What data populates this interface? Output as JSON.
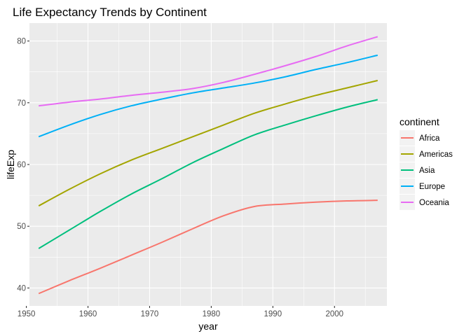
{
  "chart_data": {
    "type": "line",
    "title": "Life Expectancy Trends by Continent",
    "xlabel": "year",
    "ylabel": "lifeExp",
    "xlim": [
      1950.5,
      2008.5
    ],
    "ylim": [
      37.1,
      82.9
    ],
    "x_ticks": [
      1950,
      1960,
      1970,
      1980,
      1990,
      2000
    ],
    "y_ticks": [
      40,
      50,
      60,
      70,
      80
    ],
    "legend_title": "continent",
    "legend_position": "right",
    "grid": true,
    "background": "#ebebeb",
    "x": [
      1952,
      1957,
      1962,
      1967,
      1972,
      1977,
      1982,
      1987,
      1992,
      1997,
      2002,
      2007
    ],
    "series": [
      {
        "name": "Africa",
        "color": "#F8766D",
        "values": [
          39.1,
          41.2,
          43.2,
          45.3,
          47.4,
          49.6,
          51.7,
          53.2,
          53.6,
          53.9,
          54.1,
          54.2
        ]
      },
      {
        "name": "Americas",
        "color": "#A3A500",
        "values": [
          53.3,
          56.0,
          58.5,
          60.7,
          62.6,
          64.5,
          66.4,
          68.3,
          69.8,
          71.2,
          72.4,
          73.6
        ]
      },
      {
        "name": "Asia",
        "color": "#00BF7D",
        "values": [
          46.4,
          49.4,
          52.4,
          55.2,
          57.7,
          60.3,
          62.6,
          64.8,
          66.4,
          67.9,
          69.3,
          70.5
        ]
      },
      {
        "name": "Europe",
        "color": "#00B0F6",
        "values": [
          64.5,
          66.4,
          68.1,
          69.5,
          70.6,
          71.6,
          72.4,
          73.2,
          74.2,
          75.4,
          76.5,
          77.7
        ]
      },
      {
        "name": "Oceania",
        "color": "#E76BF3",
        "values": [
          69.5,
          70.1,
          70.6,
          71.2,
          71.7,
          72.3,
          73.3,
          74.6,
          76.0,
          77.5,
          79.2,
          80.7
        ]
      }
    ]
  }
}
